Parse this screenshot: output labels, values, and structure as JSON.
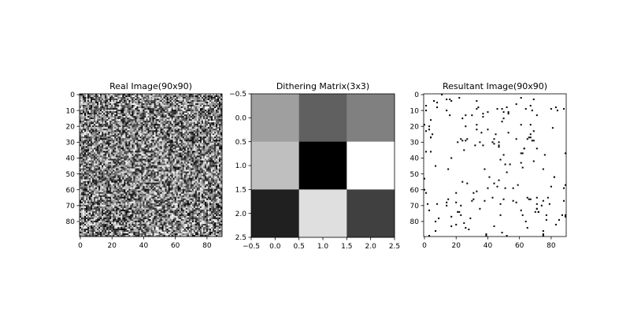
{
  "chart_data": [
    {
      "type": "heatmap",
      "title": "Real Image(90x90)",
      "colormap": "gray",
      "shape": [
        90,
        90
      ],
      "pattern": "random noise",
      "xlabel": "",
      "ylabel": "",
      "xlim": [
        -0.5,
        89.5
      ],
      "ylim": [
        89.5,
        -0.5
      ],
      "xticks": [
        0,
        20,
        40,
        60,
        80
      ],
      "xtick_labels": [
        "0",
        "20",
        "40",
        "60",
        "80"
      ],
      "yticks": [
        0,
        10,
        20,
        30,
        40,
        50,
        60,
        70,
        80
      ],
      "ytick_labels": [
        "0",
        "10",
        "20",
        "30",
        "40",
        "50",
        "60",
        "70",
        "80"
      ]
    },
    {
      "type": "heatmap",
      "title": "Dithering Matrix(3x3)",
      "colormap": "gray",
      "values": [
        [
          5,
          3,
          4
        ],
        [
          6,
          0,
          8
        ],
        [
          1,
          7,
          2
        ]
      ],
      "vmin": 0,
      "vmax": 8,
      "xlabel": "",
      "ylabel": "",
      "xlim": [
        -0.5,
        2.5
      ],
      "ylim": [
        2.5,
        -0.5
      ],
      "xticks": [
        -0.5,
        0.0,
        0.5,
        1.0,
        1.5,
        2.0,
        2.5
      ],
      "xtick_labels": [
        "−0.5",
        "0.0",
        "0.5",
        "1.0",
        "1.5",
        "2.0",
        "2.5"
      ],
      "yticks": [
        -0.5,
        0.0,
        0.5,
        1.0,
        1.5,
        2.0,
        2.5
      ],
      "ytick_labels": [
        "−0.5",
        "0.0",
        "0.5",
        "1.0",
        "1.5",
        "2.0",
        "2.5"
      ]
    },
    {
      "type": "heatmap",
      "title": "Resultant Image(90x90)",
      "colormap": "binary",
      "shape": [
        90,
        90
      ],
      "pattern": "sparse black pixels on white",
      "xlabel": "",
      "ylabel": "",
      "xlim": [
        -0.5,
        89.5
      ],
      "ylim": [
        89.5,
        -0.5
      ],
      "xticks": [
        0,
        20,
        40,
        60,
        80
      ],
      "xtick_labels": [
        "0",
        "20",
        "40",
        "60",
        "80"
      ],
      "yticks": [
        0,
        10,
        20,
        30,
        40,
        50,
        60,
        70,
        80
      ],
      "ytick_labels": [
        "0",
        "10",
        "20",
        "30",
        "40",
        "50",
        "60",
        "70",
        "80"
      ]
    }
  ]
}
